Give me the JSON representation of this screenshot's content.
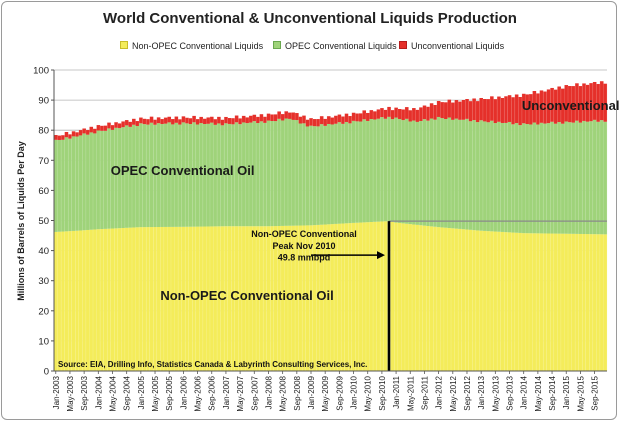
{
  "chart_data": {
    "type": "area",
    "title": "World Conventional & Unconventional Liquids Production",
    "ylabel": "Millions of Barrels of Liquids Per Day",
    "xlabel": "",
    "ylim": [
      0,
      100
    ],
    "yticks": [
      0,
      10,
      20,
      30,
      40,
      50,
      60,
      70,
      80,
      90,
      100
    ],
    "grid": true,
    "stacked": true,
    "x_start": "Jan-2003",
    "x_end": "Dec-2015",
    "x_ticks": [
      "Jan-2003",
      "May-2003",
      "Sep-2003",
      "Jan-2004",
      "May-2004",
      "Sep-2004",
      "Jan-2005",
      "May-2005",
      "Sep-2005",
      "Jan-2006",
      "May-2006",
      "Sep-2006",
      "Jan-2007",
      "May-2007",
      "Sep-2007",
      "Jan-2008",
      "May-2008",
      "Sep-2008",
      "Jan-2009",
      "May-2009",
      "Sep-2009",
      "Jan-2010",
      "May-2010",
      "Sep-2010",
      "Jan-2011",
      "May-2011",
      "Sep-2011",
      "Jan-2012",
      "May-2012",
      "Sep-2012",
      "Jan-2013",
      "May-2013",
      "Sep-2013",
      "Jan-2014",
      "May-2014",
      "Sep-2014",
      "Jan-2015",
      "May-2015",
      "Sep-2015"
    ],
    "legend_position": "top",
    "series": [
      {
        "name": "Non-OPEC Conventional Liquids",
        "color": "#f4ec5a",
        "keyframes": [
          {
            "x": "Jan-2003",
            "y": 46.2
          },
          {
            "x": "Jul-2003",
            "y": 46.6
          },
          {
            "x": "Jan-2004",
            "y": 47.1
          },
          {
            "x": "Jan-2005",
            "y": 47.8
          },
          {
            "x": "Jan-2006",
            "y": 47.9
          },
          {
            "x": "Jan-2007",
            "y": 48.1
          },
          {
            "x": "Jan-2008",
            "y": 48.1
          },
          {
            "x": "Jan-2009",
            "y": 48.4
          },
          {
            "x": "Jan-2010",
            "y": 49.2
          },
          {
            "x": "Nov-2010",
            "y": 49.8
          },
          {
            "x": "Jan-2011",
            "y": 49.3
          },
          {
            "x": "Jan-2012",
            "y": 47.8
          },
          {
            "x": "Jan-2013",
            "y": 46.6
          },
          {
            "x": "Jan-2014",
            "y": 45.8
          },
          {
            "x": "Jan-2015",
            "y": 45.6
          },
          {
            "x": "Dec-2015",
            "y": 45.4
          }
        ]
      },
      {
        "name": "OPEC Conventional Liquids",
        "color": "#9fd37a",
        "keyframes": [
          {
            "x": "Jan-2003",
            "y": 30.3
          },
          {
            "x": "Jan-2004",
            "y": 32.5
          },
          {
            "x": "Jan-2005",
            "y": 34.2
          },
          {
            "x": "Jan-2006",
            "y": 34.4
          },
          {
            "x": "Jan-2007",
            "y": 33.9
          },
          {
            "x": "Jan-2008",
            "y": 34.8
          },
          {
            "x": "Jul-2008",
            "y": 35.6
          },
          {
            "x": "Jan-2009",
            "y": 32.8
          },
          {
            "x": "Jan-2010",
            "y": 33.6
          },
          {
            "x": "Jan-2011",
            "y": 34.6
          },
          {
            "x": "Jul-2011",
            "y": 34.3
          },
          {
            "x": "Jan-2012",
            "y": 36.3
          },
          {
            "x": "Jan-2013",
            "y": 36.4
          },
          {
            "x": "Jan-2014",
            "y": 36.2
          },
          {
            "x": "Jan-2015",
            "y": 37.0
          },
          {
            "x": "Dec-2015",
            "y": 37.8
          }
        ]
      },
      {
        "name": "Unconventional Liquids",
        "color": "#e5302a",
        "keyframes": [
          {
            "x": "Jan-2003",
            "y": 1.5
          },
          {
            "x": "Jan-2004",
            "y": 1.7
          },
          {
            "x": "Jan-2005",
            "y": 1.8
          },
          {
            "x": "Jan-2006",
            "y": 1.9
          },
          {
            "x": "Jan-2007",
            "y": 2.0
          },
          {
            "x": "Jan-2008",
            "y": 2.2
          },
          {
            "x": "Jan-2009",
            "y": 2.4
          },
          {
            "x": "Jan-2010",
            "y": 2.6
          },
          {
            "x": "Jan-2011",
            "y": 3.2
          },
          {
            "x": "Jan-2012",
            "y": 5.2
          },
          {
            "x": "Jan-2013",
            "y": 7.3
          },
          {
            "x": "Jan-2014",
            "y": 9.7
          },
          {
            "x": "Jan-2015",
            "y": 12.0
          },
          {
            "x": "Dec-2015",
            "y": 12.8
          }
        ]
      }
    ],
    "annotations": [
      {
        "text": "OPEC Conventional Oil",
        "x": "May-2004",
        "y": 66.5
      },
      {
        "text": "Unconventional Oil",
        "x": "Jan-2014",
        "y": 88
      },
      {
        "text": "Non-OPEC Conventional Oil",
        "x": "Jul-2005",
        "y": 25
      }
    ],
    "peak": {
      "lines": [
        "Non-OPEC Conventional",
        "Peak Nov 2010",
        "49.8 mmbpd"
      ],
      "x": "Nov-2010",
      "y": 49.8
    },
    "source": "Source: EIA, Drilling Info, Statistics Canada & Labyrinth Consulting Services, Inc."
  }
}
